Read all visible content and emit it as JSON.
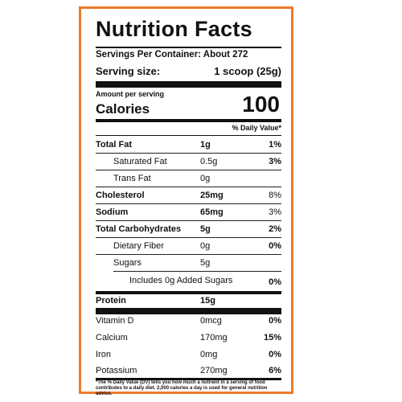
{
  "label": {
    "title": "Nutrition Facts",
    "servings_per_container": "Servings Per Container: About 272",
    "serving_size_label": "Serving size:",
    "serving_size_value": "1 scoop (25g)",
    "amount_per_serving": "Amount per serving",
    "calories_label": "Calories",
    "calories_value": "100",
    "daily_value_header": "% Daily Value*",
    "footnote": "*The % Daily Value (DV) tells you how much a nutrient in a serving of food contributes to a daily diet. 2,000 calories a day is used for general nutrition advice."
  },
  "nutrients": [
    {
      "label": "Total Fat",
      "amount": "1g",
      "dv": "1%"
    },
    {
      "label": "Saturated Fat",
      "amount": "0.5g",
      "dv": "3%"
    },
    {
      "label": "Trans Fat",
      "amount": "0g",
      "dv": ""
    },
    {
      "label": "Cholesterol",
      "amount": "25mg",
      "dv": "8%"
    },
    {
      "label": "Sodium",
      "amount": "65mg",
      "dv": "3%"
    },
    {
      "label": "Total Carbohydrates",
      "amount": "5g",
      "dv": "2%"
    },
    {
      "label": "Dietary Fiber",
      "amount": "0g",
      "dv": "0%"
    },
    {
      "label": "Sugars",
      "amount": "5g",
      "dv": ""
    },
    {
      "label": "Includes 0g Added Sugars",
      "amount": "",
      "dv": "0%"
    },
    {
      "label": "Protein",
      "amount": "15g",
      "dv": ""
    }
  ],
  "vitamins": [
    {
      "label": "Vitamin D",
      "amount": "0mcg",
      "dv": "0%"
    },
    {
      "label": "Calcium",
      "amount": "170mg",
      "dv": "15%"
    },
    {
      "label": "Iron",
      "amount": "0mg",
      "dv": "0%"
    },
    {
      "label": "Potassium",
      "amount": "270mg",
      "dv": "6%"
    }
  ],
  "colors": {
    "border": "#ee7a2e",
    "text": "#111111"
  }
}
